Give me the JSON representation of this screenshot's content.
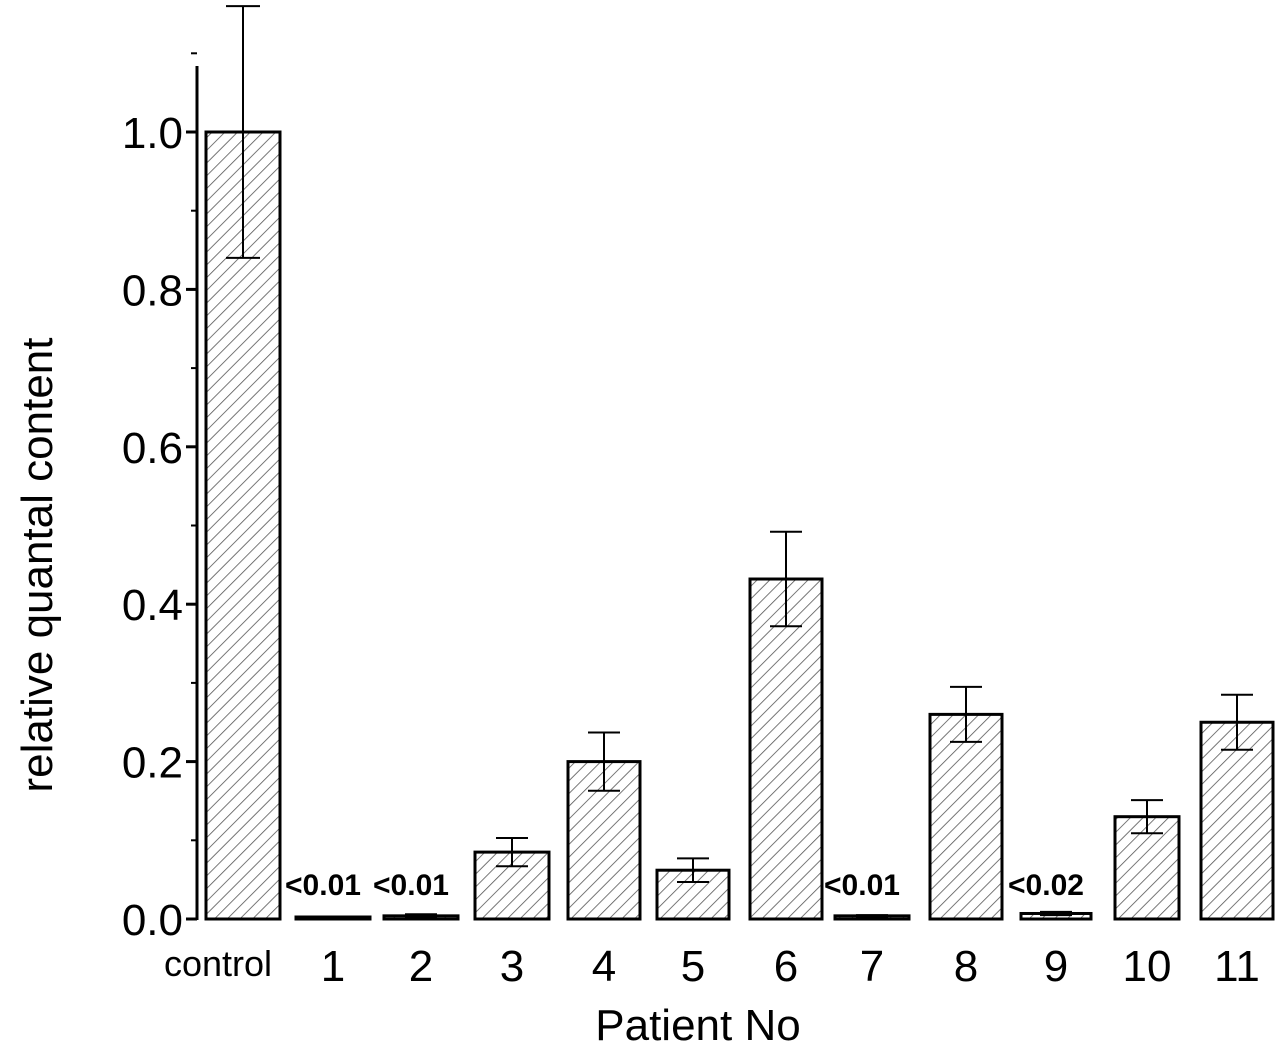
{
  "chart_data": {
    "type": "bar",
    "xlabel": "Patient No",
    "ylabel": "relative quantal content",
    "ylim": [
      0,
      1.1
    ],
    "yticks": [
      0.0,
      0.2,
      0.4,
      0.6,
      0.8,
      1.0
    ],
    "ytick_labels": [
      "0.0",
      "0.2",
      "0.4",
      "0.6",
      "0.8",
      "1.0"
    ],
    "categories": [
      "control",
      "1",
      "2",
      "3",
      "4",
      "5",
      "6",
      "7",
      "8",
      "9",
      "10",
      "11"
    ],
    "values": [
      1.0,
      0.002,
      0.004,
      0.085,
      0.2,
      0.062,
      0.432,
      0.004,
      0.26,
      0.007,
      0.13,
      0.25
    ],
    "error_bars": [
      0.16,
      0.0,
      0.002,
      0.018,
      0.037,
      0.015,
      0.06,
      0.001,
      0.035,
      0.002,
      0.021,
      0.035
    ],
    "annotations": [
      {
        "category": "1",
        "text": "<0.01"
      },
      {
        "category": "2",
        "text": "<0.01"
      },
      {
        "category": "7",
        "text": "<0.01"
      },
      {
        "category": "9",
        "text": "<0.02"
      }
    ],
    "grid": false,
    "legend": "none",
    "bar_fill": "hatched",
    "colors": {
      "bar_stroke": "#000000",
      "hatch": "#444444",
      "background": "#ffffff"
    }
  }
}
